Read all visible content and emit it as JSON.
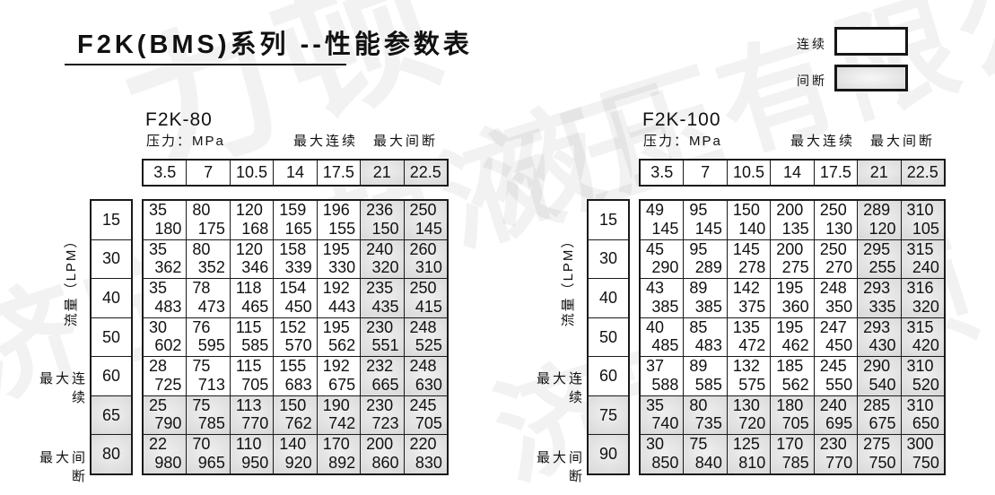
{
  "page": {
    "title": "F2K(BMS)系列 --性能参数表",
    "watermarks": [
      "力顿",
      "济宁力顿液压",
      "液压有限公司",
      "济宁力顿"
    ]
  },
  "legend": {
    "continuous": "连续",
    "intermittent": "间断"
  },
  "labels": {
    "pressure_unit": "压力：MPa",
    "max_continuous": "最大连续",
    "max_intermittent": "最大间断",
    "flow_unit": "流量（LPM）"
  },
  "colors": {
    "border": "#1a1a1a",
    "intermittent_gray": "#c7c7c7",
    "background": "#ffffff"
  },
  "tables": [
    {
      "name": "F2K-80",
      "pressures": [
        "3.5",
        "7",
        "10.5",
        "14",
        "17.5",
        "21",
        "22.5"
      ],
      "gray_col_start": 5,
      "rows": [
        {
          "flow": "15",
          "gray": false,
          "top": [
            "35",
            "80",
            "120",
            "159",
            "196",
            "236",
            "250"
          ],
          "bottom": [
            "180",
            "175",
            "168",
            "165",
            "155",
            "150",
            "145"
          ]
        },
        {
          "flow": "30",
          "gray": false,
          "top": [
            "35",
            "80",
            "120",
            "158",
            "195",
            "240",
            "260"
          ],
          "bottom": [
            "362",
            "352",
            "346",
            "339",
            "330",
            "320",
            "310"
          ]
        },
        {
          "flow": "40",
          "gray": false,
          "top": [
            "35",
            "78",
            "118",
            "154",
            "192",
            "235",
            "250"
          ],
          "bottom": [
            "483",
            "473",
            "465",
            "450",
            "443",
            "435",
            "415"
          ]
        },
        {
          "flow": "50",
          "gray": false,
          "top": [
            "30",
            "76",
            "115",
            "152",
            "195",
            "230",
            "248"
          ],
          "bottom": [
            "602",
            "595",
            "585",
            "570",
            "562",
            "551",
            "525"
          ]
        },
        {
          "flow": "60",
          "gray": false,
          "top": [
            "28",
            "75",
            "115",
            "155",
            "192",
            "232",
            "248"
          ],
          "bottom": [
            "725",
            "713",
            "705",
            "683",
            "675",
            "665",
            "630"
          ]
        },
        {
          "flow": "65",
          "gray": true,
          "top": [
            "25",
            "75",
            "113",
            "150",
            "190",
            "230",
            "245"
          ],
          "bottom": [
            "790",
            "785",
            "770",
            "762",
            "742",
            "723",
            "705"
          ]
        },
        {
          "flow": "80",
          "gray": true,
          "top": [
            "22",
            "70",
            "110",
            "140",
            "170",
            "200",
            "220"
          ],
          "bottom": [
            "980",
            "965",
            "950",
            "920",
            "892",
            "860",
            "830"
          ]
        }
      ]
    },
    {
      "name": "F2K-100",
      "pressures": [
        "3.5",
        "7",
        "10.5",
        "14",
        "17.5",
        "21",
        "22.5"
      ],
      "gray_col_start": 5,
      "rows": [
        {
          "flow": "15",
          "gray": false,
          "top": [
            "49",
            "95",
            "150",
            "200",
            "250",
            "289",
            "310"
          ],
          "bottom": [
            "145",
            "145",
            "140",
            "135",
            "130",
            "120",
            "105"
          ]
        },
        {
          "flow": "30",
          "gray": false,
          "top": [
            "45",
            "95",
            "145",
            "200",
            "250",
            "295",
            "315"
          ],
          "bottom": [
            "290",
            "289",
            "278",
            "275",
            "270",
            "255",
            "240"
          ]
        },
        {
          "flow": "40",
          "gray": false,
          "top": [
            "43",
            "89",
            "142",
            "195",
            "248",
            "293",
            "316"
          ],
          "bottom": [
            "385",
            "385",
            "375",
            "360",
            "350",
            "335",
            "320"
          ]
        },
        {
          "flow": "50",
          "gray": false,
          "top": [
            "40",
            "85",
            "135",
            "195",
            "247",
            "293",
            "315"
          ],
          "bottom": [
            "485",
            "483",
            "472",
            "462",
            "450",
            "430",
            "420"
          ]
        },
        {
          "flow": "60",
          "gray": false,
          "top": [
            "37",
            "89",
            "132",
            "185",
            "245",
            "290",
            "310"
          ],
          "bottom": [
            "588",
            "585",
            "575",
            "562",
            "550",
            "540",
            "520"
          ]
        },
        {
          "flow": "75",
          "gray": true,
          "top": [
            "35",
            "80",
            "130",
            "180",
            "240",
            "285",
            "310"
          ],
          "bottom": [
            "740",
            "735",
            "720",
            "705",
            "695",
            "675",
            "650"
          ]
        },
        {
          "flow": "90",
          "gray": true,
          "top": [
            "30",
            "75",
            "125",
            "170",
            "230",
            "275",
            "300"
          ],
          "bottom": [
            "850",
            "840",
            "810",
            "785",
            "770",
            "750",
            "750"
          ]
        }
      ]
    }
  ]
}
